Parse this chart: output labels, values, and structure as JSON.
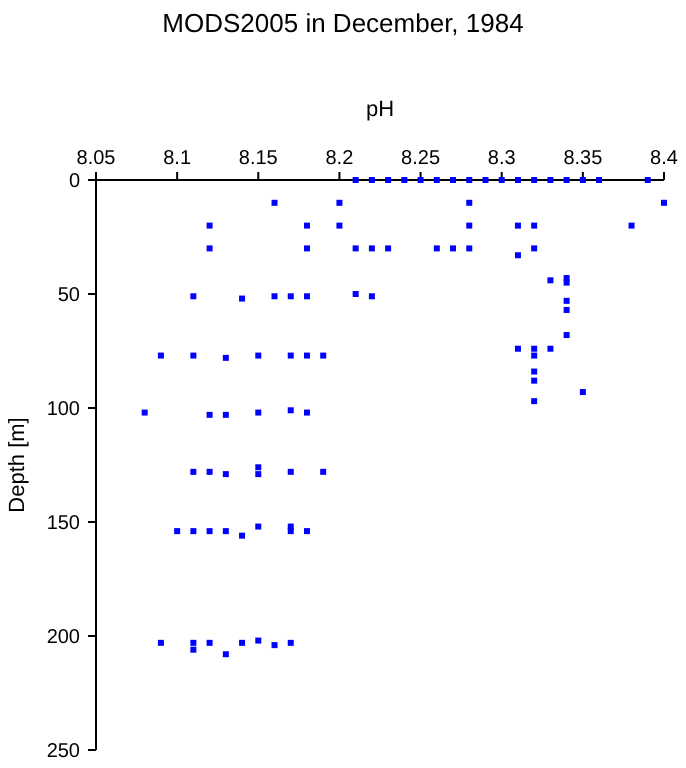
{
  "chart_data": {
    "type": "scatter",
    "title": "MODS2005 in December, 1984",
    "xlabel": "pH",
    "ylabel": "Depth [m]",
    "xlim": [
      8.05,
      8.4
    ],
    "xticks": [
      8.05,
      8.1,
      8.15,
      8.2,
      8.25,
      8.3,
      8.35,
      8.4
    ],
    "ylim": [
      250,
      0
    ],
    "yticks": [
      0,
      50,
      100,
      150,
      200,
      250
    ],
    "grid": false,
    "marker": "square",
    "series": [
      {
        "color": "#0000ff",
        "x": [
          8.21,
          8.22,
          8.23,
          8.24,
          8.25,
          8.26,
          8.27,
          8.28,
          8.29,
          8.3,
          8.31,
          8.32,
          8.33,
          8.34,
          8.35,
          8.36,
          8.39,
          8.16,
          8.2,
          8.28,
          8.4,
          8.12,
          8.18,
          8.2,
          8.28,
          8.31,
          8.32,
          8.38,
          8.12,
          8.18,
          8.21,
          8.22,
          8.23,
          8.26,
          8.27,
          8.28,
          8.32,
          8.31,
          8.33,
          8.34,
          8.34,
          8.11,
          8.16,
          8.17,
          8.18,
          8.21,
          8.22,
          8.14,
          8.34,
          8.34,
          8.34,
          8.31,
          8.32,
          8.33,
          8.32,
          8.32,
          8.32,
          8.32,
          8.35,
          8.09,
          8.11,
          8.13,
          8.15,
          8.17,
          8.18,
          8.19,
          8.08,
          8.12,
          8.13,
          8.15,
          8.17,
          8.18,
          8.11,
          8.12,
          8.13,
          8.15,
          8.15,
          8.17,
          8.19,
          8.1,
          8.11,
          8.12,
          8.13,
          8.14,
          8.15,
          8.17,
          8.17,
          8.18,
          8.09,
          8.11,
          8.11,
          8.12,
          8.13,
          8.14,
          8.15,
          8.16,
          8.17
        ],
        "values": [
          0,
          0,
          0,
          0,
          0,
          0,
          0,
          0,
          0,
          0,
          0,
          0,
          0,
          0,
          0,
          0,
          0,
          10,
          10,
          10,
          10,
          20,
          20,
          20,
          20,
          20,
          20,
          20,
          30,
          30,
          30,
          30,
          30,
          30,
          30,
          30,
          30,
          33,
          44,
          43,
          45,
          51,
          51,
          51,
          51,
          50,
          51,
          52,
          53,
          57,
          68,
          74,
          74,
          74,
          77,
          84,
          88,
          97,
          93,
          77,
          77,
          78,
          77,
          77,
          77,
          77,
          102,
          103,
          103,
          102,
          101,
          102,
          128,
          128,
          129,
          126,
          129,
          128,
          128,
          154,
          154,
          154,
          154,
          156,
          152,
          152,
          154,
          154,
          203,
          203,
          206,
          203,
          208,
          203,
          202,
          204,
          203
        ]
      }
    ]
  }
}
